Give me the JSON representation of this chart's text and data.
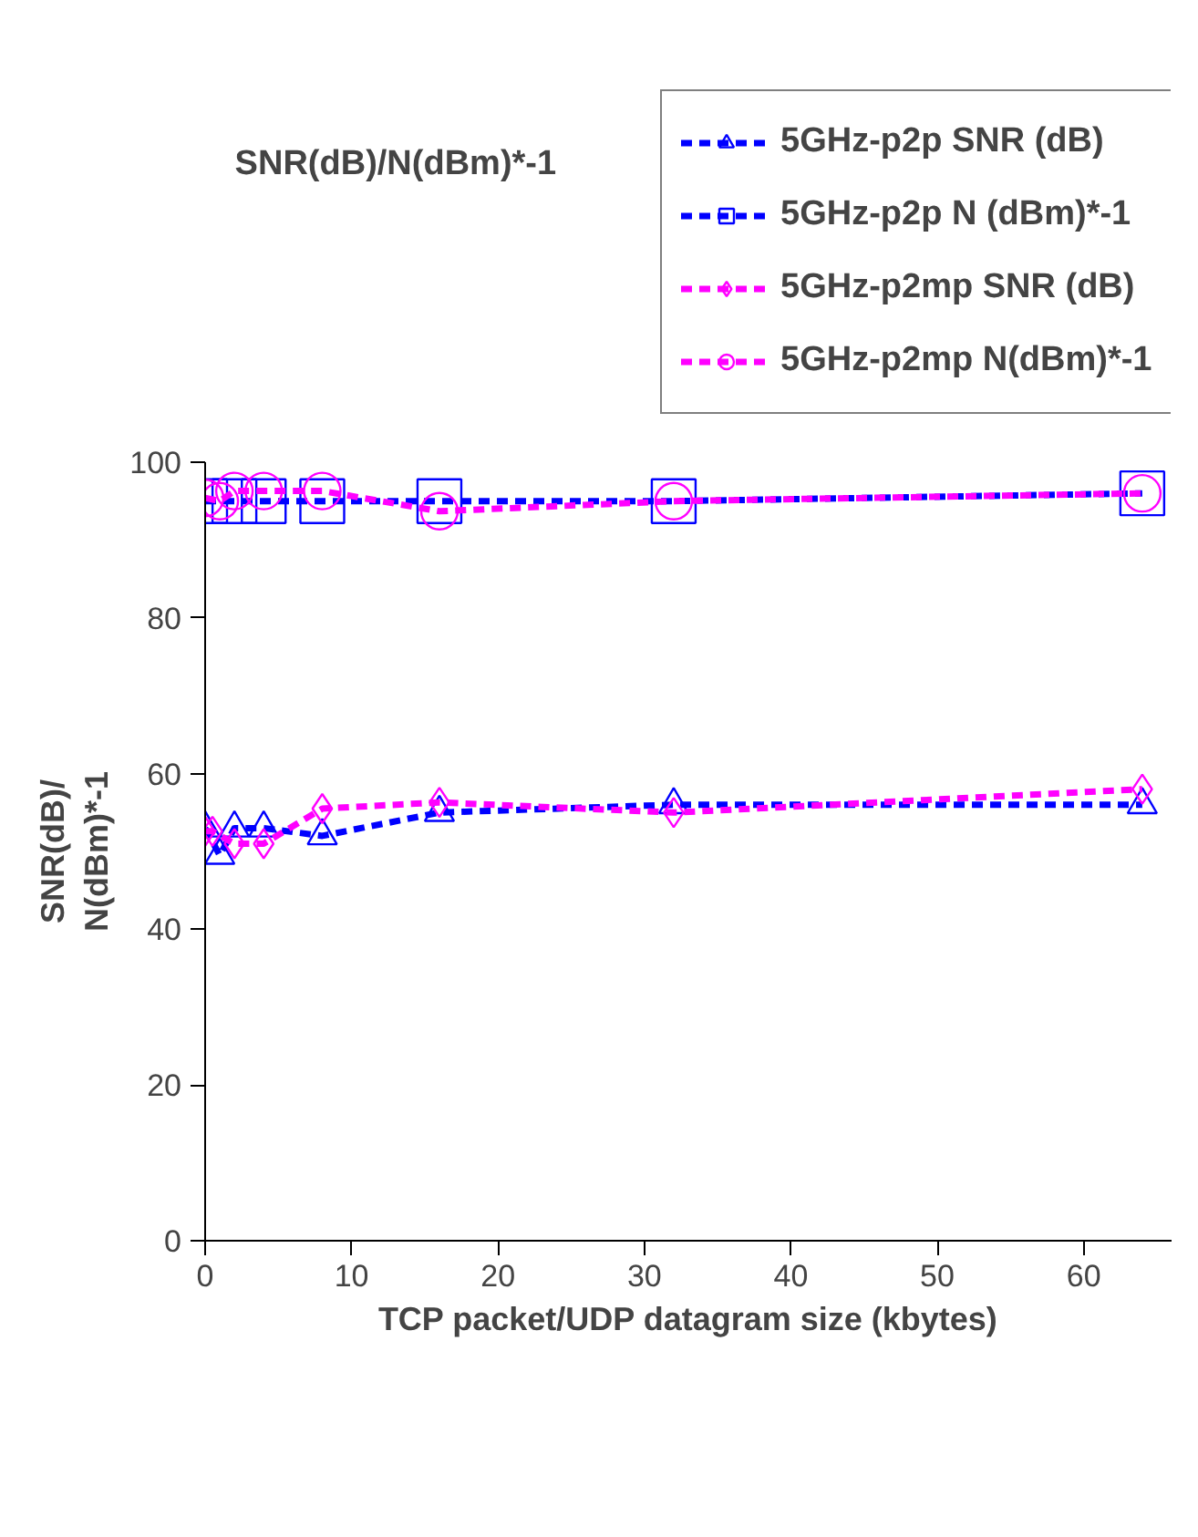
{
  "chart_data": {
    "type": "line",
    "title": "SNR(dB)/N(dBm)*-1",
    "xlabel": "TCP packet/UDP datagram size (kbytes)",
    "ylabel": "SNR(dB)/\nN(dBm)*-1",
    "xlim": [
      0,
      66
    ],
    "ylim": [
      0,
      100
    ],
    "xticks": [
      0,
      10,
      20,
      30,
      40,
      50,
      60
    ],
    "yticks": [
      0,
      20,
      40,
      60,
      80,
      100
    ],
    "grid": false,
    "legend": "top right",
    "line_style": "dashed",
    "series": [
      {
        "name": "5GHz-p2p SNR (dB)",
        "color": "#0000ff",
        "marker": "triangle",
        "x": [
          0,
          1,
          2,
          4,
          8,
          16,
          32,
          64
        ],
        "values": [
          53,
          49.5,
          53,
          53,
          52,
          55,
          56,
          56
        ]
      },
      {
        "name": "5GHz-p2p N (dBm)*-1",
        "color": "#0000ff",
        "marker": "square",
        "x": [
          0,
          2,
          4,
          8,
          16,
          32,
          64
        ],
        "values": [
          95,
          95,
          95,
          95,
          95,
          95,
          96
        ]
      },
      {
        "name": "5GHz-p2mp SNR (dB)",
        "color": "#ff00ff",
        "marker": "diamond",
        "x": [
          0,
          0.5,
          2,
          4,
          8,
          16,
          32,
          64
        ],
        "values": [
          52.6,
          52.6,
          51,
          51,
          55.5,
          56.3,
          55,
          58
        ]
      },
      {
        "name": "5GHz-p2mp N(dBm)*-1",
        "color": "#ff00ff",
        "marker": "circle",
        "x": [
          0,
          1,
          2,
          4,
          8,
          16,
          32,
          64
        ],
        "values": [
          95.4,
          95,
          96.3,
          96.3,
          96.3,
          93.7,
          95,
          96
        ]
      }
    ]
  }
}
